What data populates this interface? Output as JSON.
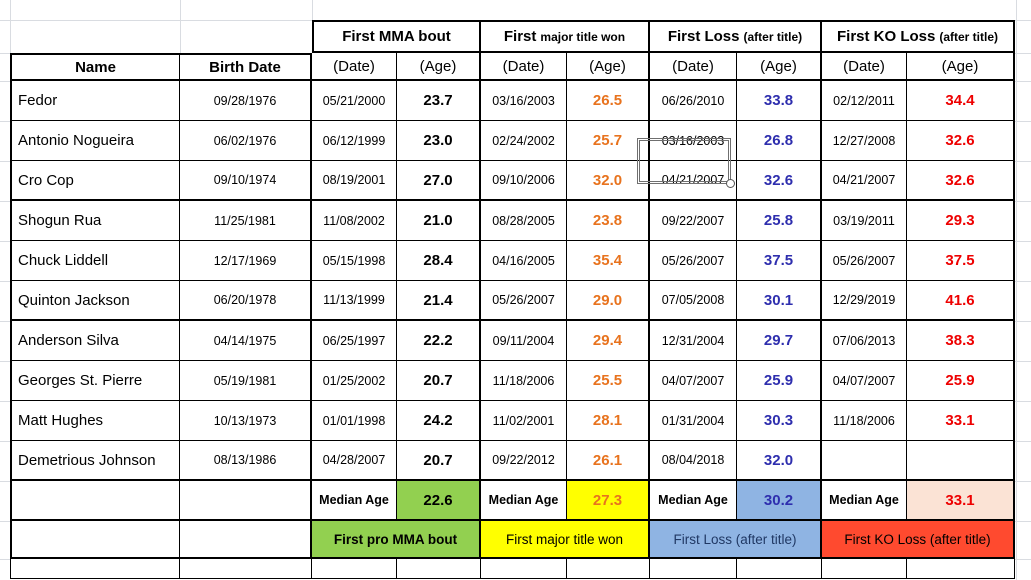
{
  "table": {
    "group_headers": [
      {
        "main": "First MMA bout",
        "sub": ""
      },
      {
        "main": "First",
        "sub": "major title won"
      },
      {
        "main": "First Loss",
        "sub": "(after title)"
      },
      {
        "main": "First KO Loss",
        "sub": "(after title)"
      }
    ],
    "col_headers": {
      "name": "Name",
      "birth": "Birth Date",
      "date": "(Date)",
      "age": "(Age)"
    },
    "rows": [
      {
        "name": "Fedor",
        "birth": "09/28/1976",
        "mma_date": "05/21/2000",
        "mma_age": "23.7",
        "title_date": "03/16/2003",
        "title_age": "26.5",
        "loss_date": "06/26/2010",
        "loss_age": "33.8",
        "ko_date": "02/12/2011",
        "ko_age": "34.4"
      },
      {
        "name": "Antonio Nogueira",
        "birth": "06/02/1976",
        "mma_date": "06/12/1999",
        "mma_age": "23.0",
        "title_date": "02/24/2002",
        "title_age": "25.7",
        "loss_date": "03/16/2003",
        "loss_age": "26.8",
        "ko_date": "12/27/2008",
        "ko_age": "32.6"
      },
      {
        "name": "Cro Cop",
        "birth": "09/10/1974",
        "mma_date": "08/19/2001",
        "mma_age": "27.0",
        "title_date": "09/10/2006",
        "title_age": "32.0",
        "loss_date": "04/21/2007",
        "loss_age": "32.6",
        "ko_date": "04/21/2007",
        "ko_age": "32.6"
      },
      {
        "name": "Shogun Rua",
        "birth": "11/25/1981",
        "mma_date": "11/08/2002",
        "mma_age": "21.0",
        "title_date": "08/28/2005",
        "title_age": "23.8",
        "loss_date": "09/22/2007",
        "loss_age": "25.8",
        "ko_date": "03/19/2011",
        "ko_age": "29.3"
      },
      {
        "name": "Chuck Liddell",
        "birth": "12/17/1969",
        "mma_date": "05/15/1998",
        "mma_age": "28.4",
        "title_date": "04/16/2005",
        "title_age": "35.4",
        "loss_date": "05/26/2007",
        "loss_age": "37.5",
        "ko_date": "05/26/2007",
        "ko_age": "37.5"
      },
      {
        "name": "Quinton Jackson",
        "birth": "06/20/1978",
        "mma_date": "11/13/1999",
        "mma_age": "21.4",
        "title_date": "05/26/2007",
        "title_age": "29.0",
        "loss_date": "07/05/2008",
        "loss_age": "30.1",
        "ko_date": "12/29/2019",
        "ko_age": "41.6"
      },
      {
        "name": "Anderson Silva",
        "birth": "04/14/1975",
        "mma_date": "06/25/1997",
        "mma_age": "22.2",
        "title_date": "09/11/2004",
        "title_age": "29.4",
        "loss_date": "12/31/2004",
        "loss_age": "29.7",
        "ko_date": "07/06/2013",
        "ko_age": "38.3"
      },
      {
        "name": "Georges St. Pierre",
        "birth": "05/19/1981",
        "mma_date": "01/25/2002",
        "mma_age": "20.7",
        "title_date": "11/18/2006",
        "title_age": "25.5",
        "loss_date": "04/07/2007",
        "loss_age": "25.9",
        "ko_date": "04/07/2007",
        "ko_age": "25.9"
      },
      {
        "name": "Matt Hughes",
        "birth": "10/13/1973",
        "mma_date": "01/01/1998",
        "mma_age": "24.2",
        "title_date": "11/02/2001",
        "title_age": "28.1",
        "loss_date": "01/31/2004",
        "loss_age": "30.3",
        "ko_date": "11/18/2006",
        "ko_age": "33.1"
      },
      {
        "name": "Demetrious Johnson",
        "birth": "08/13/1986",
        "mma_date": "04/28/2007",
        "mma_age": "20.7",
        "title_date": "09/22/2012",
        "title_age": "26.1",
        "loss_date": "08/04/2018",
        "loss_age": "32.0",
        "ko_date": "",
        "ko_age": ""
      }
    ],
    "median_label": "Median Age",
    "medians": {
      "mma": "22.6",
      "title": "27.3",
      "loss": "30.2",
      "ko": "33.1"
    },
    "banners": [
      "First pro MMA bout",
      "First major title won",
      "First Loss (after title)",
      "First KO Loss (after title)"
    ]
  },
  "selection": {
    "row_name": "Cro Cop",
    "field": "loss_date",
    "value": "04/21/2007"
  },
  "colors": {
    "green": "#92D050",
    "yellow": "#FFFF00",
    "blue_fill": "#8FB4E3",
    "peach": "#FBE3D5",
    "red_fill": "#FF4A2F",
    "orange_text": "#E8731E",
    "blue_text": "#2E2EAE",
    "red_text": "#EE0000",
    "navy_text": "#203864",
    "grid_line": "#D9DCE1"
  }
}
